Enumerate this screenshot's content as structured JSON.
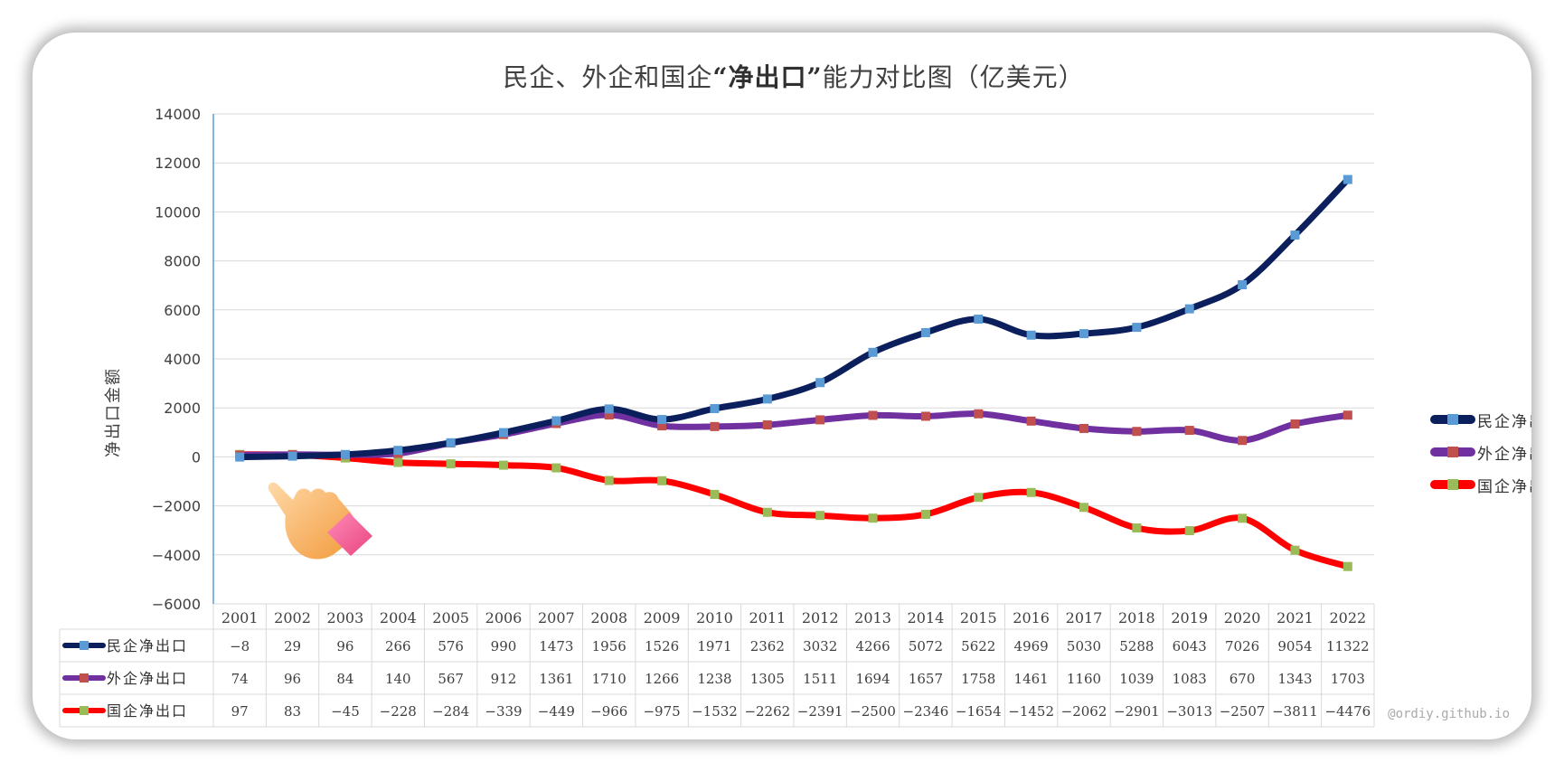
{
  "title_parts": {
    "pre": "民企、外企和国企",
    "bold": "“净出口”",
    "post": "能力对比图（亿美元）"
  },
  "watermark": "@ordiy.github.io",
  "colors": {
    "private": "#0a1f5c",
    "foreign": "#7030a0",
    "state": "#ff0000",
    "marker_private": "#5b9bd5",
    "marker_foreign": "#c0504d",
    "marker_state": "#9bbb59",
    "grid": "#d9d9d9",
    "axis": "#5b9bd5"
  },
  "icons": [
    "pointing-hand-icon"
  ],
  "chart_data": {
    "type": "line",
    "title": "民企、外企和国企“净出口”能力对比图（亿美元）",
    "ylabel": "净出口金额",
    "xlabel": "",
    "ylim": [
      -6000,
      14000
    ],
    "yticks": [
      14000,
      12000,
      10000,
      8000,
      6000,
      4000,
      2000,
      0,
      -2000,
      -4000,
      -6000
    ],
    "ytick_labels": [
      "14000",
      "12000",
      "10000",
      "8000",
      "6000",
      "4000",
      "2000",
      "0",
      "−2000",
      "−4000",
      "−6000"
    ],
    "grid": true,
    "legend_position": "right",
    "categories": [
      "2001",
      "2002",
      "2003",
      "2004",
      "2005",
      "2006",
      "2007",
      "2008",
      "2009",
      "2010",
      "2011",
      "2012",
      "2013",
      "2014",
      "2015",
      "2016",
      "2017",
      "2018",
      "2019",
      "2020",
      "2021",
      "2022"
    ],
    "series": [
      {
        "name": "民企净出口",
        "values": [
          -8,
          29,
          96,
          266,
          576,
          990,
          1473,
          1956,
          1526,
          1971,
          2362,
          3032,
          4266,
          5072,
          5622,
          4969,
          5030,
          5288,
          6043,
          7026,
          9054,
          11322
        ],
        "labels": [
          "−8",
          "29",
          "96",
          "266",
          "576",
          "990",
          "1473",
          "1956",
          "1526",
          "1971",
          "2362",
          "3032",
          "4266",
          "5072",
          "5622",
          "4969",
          "5030",
          "5288",
          "6043",
          "7026",
          "9054",
          "11322"
        ]
      },
      {
        "name": "外企净出口",
        "values": [
          74,
          96,
          84,
          140,
          567,
          912,
          1361,
          1710,
          1266,
          1238,
          1305,
          1511,
          1694,
          1657,
          1758,
          1461,
          1160,
          1039,
          1083,
          670,
          1343,
          1703
        ],
        "labels": [
          "74",
          "96",
          "84",
          "140",
          "567",
          "912",
          "1361",
          "1710",
          "1266",
          "1238",
          "1305",
          "1511",
          "1694",
          "1657",
          "1758",
          "1461",
          "1160",
          "1039",
          "1083",
          "670",
          "1343",
          "1703"
        ]
      },
      {
        "name": "国企净出口",
        "values": [
          97,
          83,
          -45,
          -228,
          -284,
          -339,
          -449,
          -966,
          -975,
          -1532,
          -2262,
          -2391,
          -2500,
          -2346,
          -1654,
          -1452,
          -2062,
          -2901,
          -3013,
          -2507,
          -3811,
          -4476
        ],
        "labels": [
          "97",
          "83",
          "−45",
          "−228",
          "−284",
          "−339",
          "−449",
          "−966",
          "−975",
          "−1532",
          "−2262",
          "−2391",
          "−2500",
          "−2346",
          "−1654",
          "−1452",
          "−2062",
          "−2901",
          "−3013",
          "−2507",
          "−3811",
          "−4476"
        ]
      }
    ]
  }
}
